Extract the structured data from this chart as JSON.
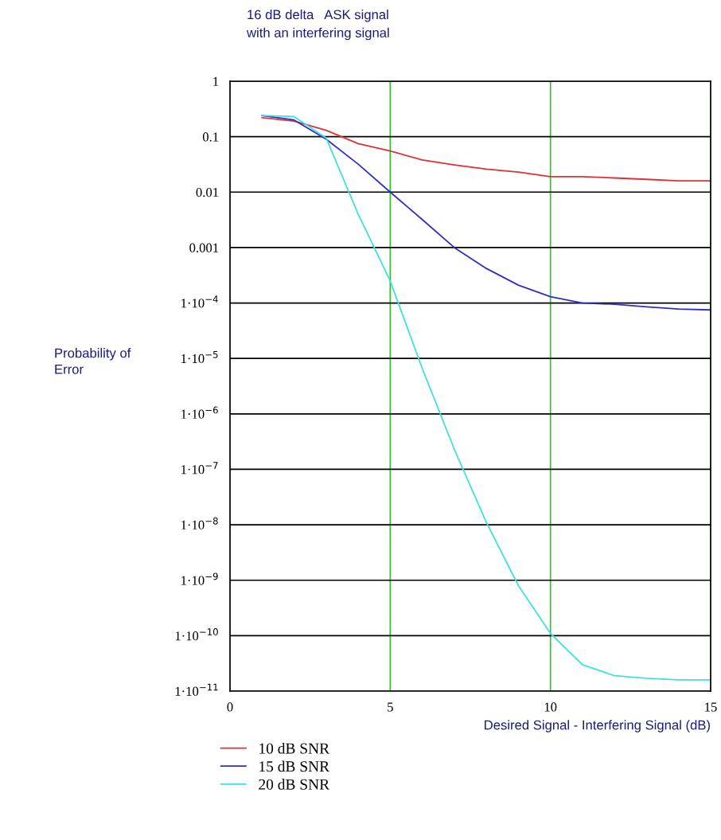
{
  "chart_data": {
    "type": "line",
    "title": "16 dB delta   ASK signal\nwith an interfering signal",
    "xlabel": "Desired Signal - Interfering Signal (dB)",
    "ylabel": "Probability of\nError",
    "x": [
      1,
      2,
      3,
      4,
      5,
      6,
      7,
      8,
      9,
      10,
      11,
      12,
      13,
      14,
      15
    ],
    "series": [
      {
        "name": "10 dB SNR",
        "color": "#e03030",
        "values": [
          0.22,
          0.19,
          0.13,
          0.075,
          0.055,
          0.038,
          0.031,
          0.026,
          0.023,
          0.019,
          0.019,
          0.018,
          0.017,
          0.016,
          0.016
        ]
      },
      {
        "name": "15 dB SNR",
        "color": "#3030c0",
        "values": [
          0.24,
          0.2,
          0.09,
          0.032,
          0.01,
          0.0032,
          0.001,
          0.00042,
          0.00021,
          0.00013,
          0.0001,
          9.5e-05,
          8.5e-05,
          7.8e-05,
          7.5e-05
        ]
      },
      {
        "name": "20 dB SNR",
        "color": "#40e0e0",
        "values": [
          0.24,
          0.23,
          0.095,
          0.004,
          0.00025,
          6.6e-06,
          2.3e-07,
          1.1e-08,
          8e-10,
          1.1e-10,
          3e-11,
          1.9e-11,
          1.7e-11,
          1.6e-11,
          1.6e-11
        ]
      }
    ],
    "log": "y",
    "xlim": [
      0,
      15
    ],
    "xticks": [
      0,
      5,
      10,
      15
    ],
    "ylim": [
      1e-11,
      1
    ],
    "yticks": [
      {
        "value": 1,
        "label": "1"
      },
      {
        "value": 0.1,
        "label": "0.1"
      },
      {
        "value": 0.01,
        "label": "0.01"
      },
      {
        "value": 0.001,
        "label": "0.001"
      },
      {
        "value": 0.0001,
        "label": "1·10$^{−4}$"
      },
      {
        "value": 1e-05,
        "label": "1·10$^{−5}$"
      },
      {
        "value": 1e-06,
        "label": "1·10$^{−6}$"
      },
      {
        "value": 1e-07,
        "label": "1·10$^{−7}$"
      },
      {
        "value": 1e-08,
        "label": "1·10$^{−8}$"
      },
      {
        "value": 1e-09,
        "label": "1·10$^{−9}$"
      },
      {
        "value": 1e-10,
        "label": "1·10$^{−10}$"
      },
      {
        "value": 1e-11,
        "label": "1·10$^{−11}$"
      }
    ],
    "grid": true,
    "legend": "bottom"
  }
}
